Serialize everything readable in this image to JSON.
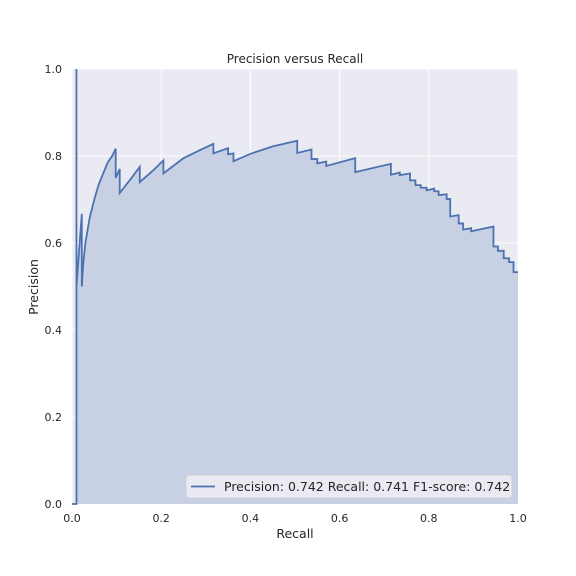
{
  "chart_data": {
    "type": "area",
    "title": "Precision versus Recall",
    "xlabel": "Recall",
    "ylabel": "Precision",
    "xlim": [
      0,
      1
    ],
    "ylim": [
      0,
      1
    ],
    "xticks": [
      "0.0",
      "0.2",
      "0.4",
      "0.6",
      "0.8",
      "1.0"
    ],
    "yticks": [
      "0.0",
      "0.2",
      "0.4",
      "0.6",
      "0.8",
      "1.0"
    ],
    "grid": true,
    "legend_position": "lower-right",
    "series": [
      {
        "name": "Precision: 0.742  Recall: 0.741  F1-score: 0.742",
        "color": "#4c72b0",
        "fill_color": "#c8d1e3",
        "points": [
          [
            0.0,
            0.0
          ],
          [
            0.005,
            0.0
          ],
          [
            0.007,
            0.0
          ],
          [
            0.0075,
            0.0
          ],
          [
            0.008,
            0.0
          ],
          [
            0.009,
            0.0
          ],
          [
            0.0095,
            0.0
          ],
          [
            0.01,
            0.0
          ],
          [
            0.01,
            1.0
          ],
          [
            0.01,
            0.5
          ],
          [
            0.022,
            0.667
          ],
          [
            0.022,
            0.5
          ],
          [
            0.025,
            0.55
          ],
          [
            0.03,
            0.6
          ],
          [
            0.04,
            0.66
          ],
          [
            0.05,
            0.7
          ],
          [
            0.06,
            0.735
          ],
          [
            0.07,
            0.76
          ],
          [
            0.08,
            0.785
          ],
          [
            0.09,
            0.8
          ],
          [
            0.098,
            0.817
          ],
          [
            0.098,
            0.75
          ],
          [
            0.107,
            0.77
          ],
          [
            0.107,
            0.715
          ],
          [
            0.13,
            0.745
          ],
          [
            0.152,
            0.775
          ],
          [
            0.152,
            0.74
          ],
          [
            0.18,
            0.765
          ],
          [
            0.205,
            0.79
          ],
          [
            0.205,
            0.76
          ],
          [
            0.25,
            0.795
          ],
          [
            0.29,
            0.815
          ],
          [
            0.317,
            0.828
          ],
          [
            0.317,
            0.806
          ],
          [
            0.35,
            0.818
          ],
          [
            0.35,
            0.804
          ],
          [
            0.362,
            0.806
          ],
          [
            0.362,
            0.788
          ],
          [
            0.4,
            0.805
          ],
          [
            0.45,
            0.822
          ],
          [
            0.505,
            0.835
          ],
          [
            0.505,
            0.807
          ],
          [
            0.537,
            0.815
          ],
          [
            0.537,
            0.793
          ],
          [
            0.55,
            0.793
          ],
          [
            0.55,
            0.783
          ],
          [
            0.57,
            0.787
          ],
          [
            0.57,
            0.777
          ],
          [
            0.635,
            0.795
          ],
          [
            0.635,
            0.763
          ],
          [
            0.715,
            0.782
          ],
          [
            0.715,
            0.757
          ],
          [
            0.735,
            0.762
          ],
          [
            0.735,
            0.756
          ],
          [
            0.758,
            0.76
          ],
          [
            0.758,
            0.744
          ],
          [
            0.77,
            0.744
          ],
          [
            0.77,
            0.733
          ],
          [
            0.782,
            0.733
          ],
          [
            0.782,
            0.727
          ],
          [
            0.795,
            0.727
          ],
          [
            0.795,
            0.721
          ],
          [
            0.812,
            0.725
          ],
          [
            0.812,
            0.719
          ],
          [
            0.822,
            0.719
          ],
          [
            0.822,
            0.71
          ],
          [
            0.84,
            0.712
          ],
          [
            0.84,
            0.701
          ],
          [
            0.848,
            0.701
          ],
          [
            0.848,
            0.661
          ],
          [
            0.867,
            0.664
          ],
          [
            0.867,
            0.645
          ],
          [
            0.877,
            0.645
          ],
          [
            0.877,
            0.631
          ],
          [
            0.895,
            0.634
          ],
          [
            0.895,
            0.627
          ],
          [
            0.945,
            0.638
          ],
          [
            0.945,
            0.592
          ],
          [
            0.955,
            0.592
          ],
          [
            0.955,
            0.582
          ],
          [
            0.968,
            0.582
          ],
          [
            0.968,
            0.565
          ],
          [
            0.98,
            0.565
          ],
          [
            0.98,
            0.556
          ],
          [
            0.99,
            0.556
          ],
          [
            0.99,
            0.533
          ],
          [
            1.0,
            0.533
          ]
        ]
      }
    ]
  }
}
